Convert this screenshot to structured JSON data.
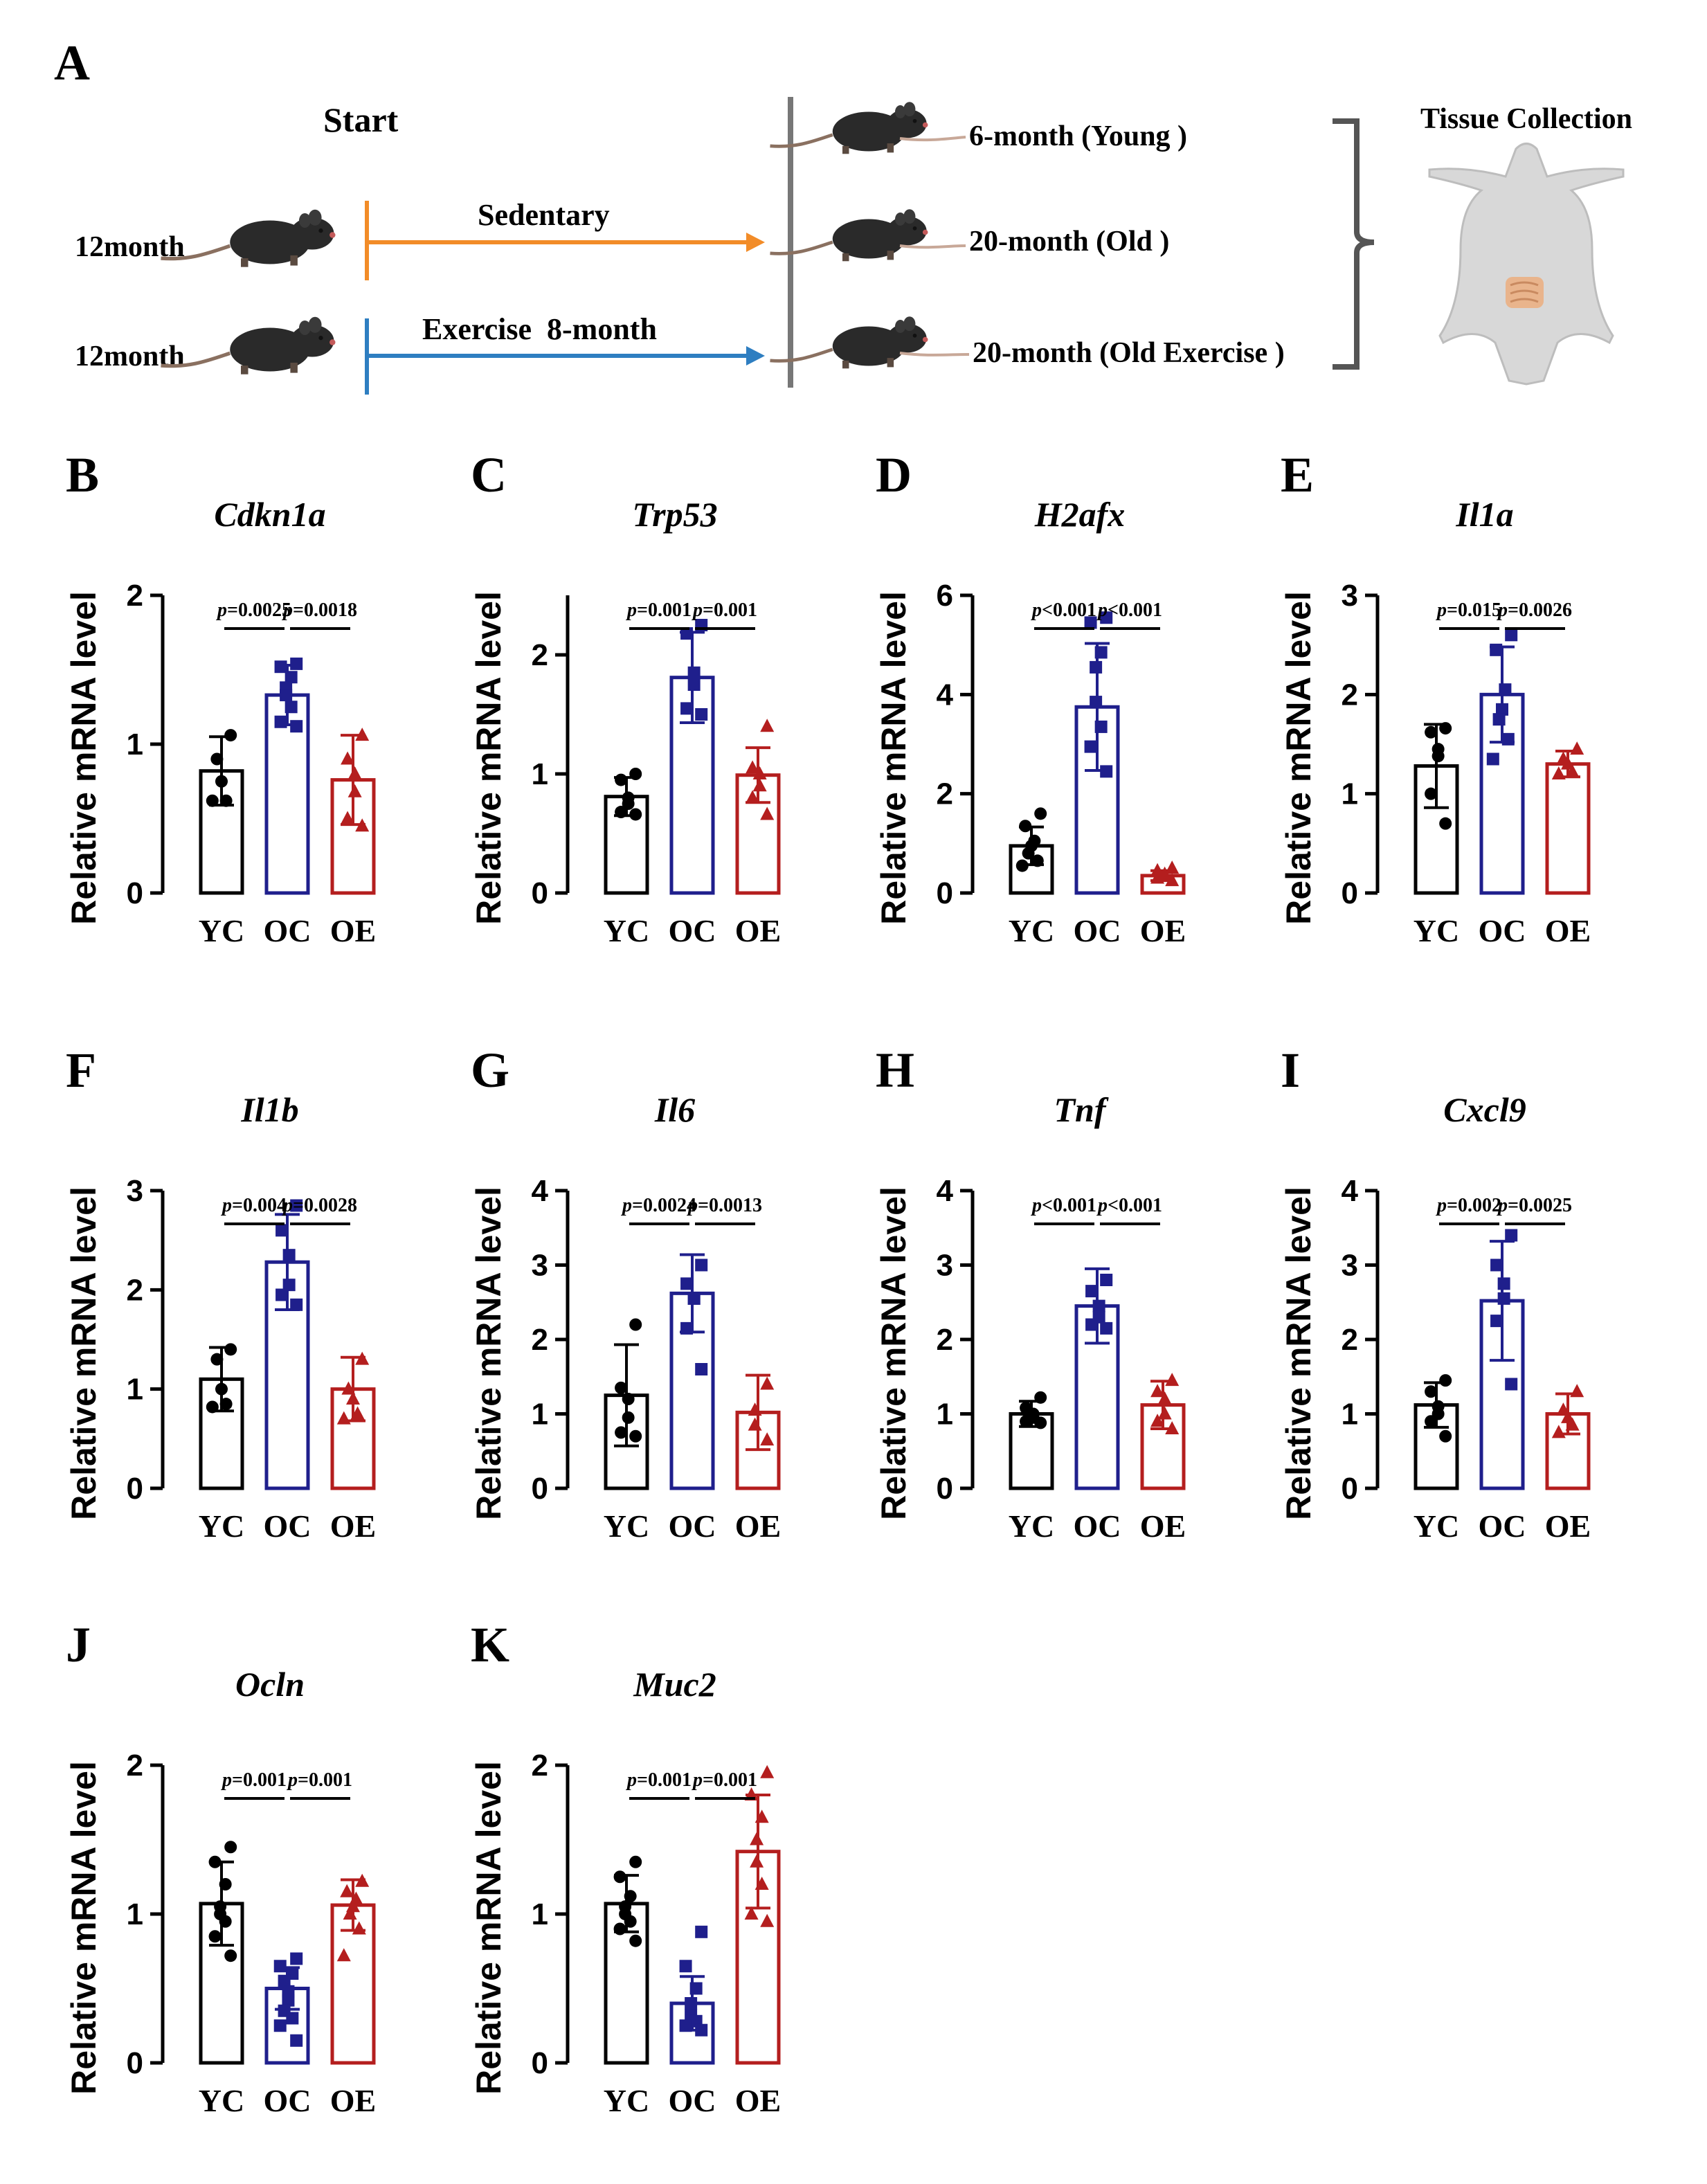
{
  "figure": {
    "schematic": {
      "panel_letter": "A",
      "start_label": "Start",
      "rows": [
        {
          "age": "12month",
          "arm": "Sedentary",
          "arm_color": "#F28C28"
        },
        {
          "age": "12month",
          "arm": "Exercise  8-month",
          "arm_color": "#2E7EC1"
        }
      ],
      "groups": [
        "6-month (Young )",
        "20-month (Old )",
        "20-month (Old Exercise )"
      ],
      "collection_label": "Tissue Collection"
    },
    "p_prefix": "p",
    "categories": [
      "YC",
      "OC",
      "OE"
    ],
    "colors": {
      "YC": "#000000",
      "OC": "#1F1F8C",
      "OE": "#B41E1E"
    }
  },
  "chart_data": [
    {
      "type": "bar",
      "panel": "B",
      "title": "Cdkn1a",
      "ylabel": "Relative mRNA level",
      "categories": [
        "YC",
        "OC",
        "OE"
      ],
      "ylim": [
        0,
        2
      ],
      "yticks": [
        0,
        1,
        2
      ],
      "values": [
        0.82,
        1.33,
        0.76
      ],
      "errors": [
        0.23,
        0.2,
        0.3
      ],
      "points": [
        [
          1.06,
          0.9,
          0.75,
          0.62,
          0.62
        ],
        [
          1.54,
          1.52,
          1.45,
          1.38,
          1.33,
          1.25,
          1.15,
          1.12
        ],
        [
          1.06,
          0.9,
          0.8,
          0.68,
          0.5,
          0.45
        ]
      ],
      "comparisons": [
        {
          "pair": [
            0,
            1
          ],
          "label": "=0.0025"
        },
        {
          "pair": [
            1,
            2
          ],
          "label": "=0.0018"
        }
      ]
    },
    {
      "type": "bar",
      "panel": "C",
      "title": "Trp53",
      "ylabel": "Relative mRNA level",
      "categories": [
        "YC",
        "OC",
        "OE"
      ],
      "ylim": [
        0,
        2.5
      ],
      "yticks": [
        0,
        1,
        2
      ],
      "values": [
        0.81,
        1.81,
        0.99
      ],
      "errors": [
        0.16,
        0.38,
        0.23
      ],
      "points": [
        [
          1.0,
          0.95,
          0.8,
          0.75,
          0.68,
          0.66
        ],
        [
          2.25,
          2.18,
          1.85,
          1.75,
          1.55,
          1.5
        ],
        [
          1.4,
          1.05,
          1.0,
          0.9,
          0.8,
          0.66
        ]
      ],
      "comparisons": [
        {
          "pair": [
            0,
            1
          ],
          "label": "=0.001"
        },
        {
          "pair": [
            1,
            2
          ],
          "label": "=0.001"
        }
      ]
    },
    {
      "type": "bar",
      "panel": "D",
      "title": "H2afx",
      "ylabel": "Relative mRNA level",
      "categories": [
        "YC",
        "OC",
        "OE"
      ],
      "ylim": [
        0,
        6
      ],
      "yticks": [
        0,
        2,
        4,
        6
      ],
      "values": [
        0.95,
        3.75,
        0.35
      ],
      "errors": [
        0.38,
        1.28,
        0.1
      ],
      "points": [
        [
          1.6,
          1.35,
          1.05,
          0.95,
          0.8,
          0.65,
          0.55
        ],
        [
          5.55,
          5.45,
          4.85,
          4.55,
          3.85,
          3.35,
          2.95,
          2.45
        ],
        [
          0.5,
          0.45,
          0.38,
          0.35,
          0.3,
          0.25
        ]
      ],
      "comparisons": [
        {
          "pair": [
            0,
            1
          ],
          "label": "<0.001"
        },
        {
          "pair": [
            1,
            2
          ],
          "label": "<0.001"
        }
      ]
    },
    {
      "type": "bar",
      "panel": "E",
      "title": "Il1a",
      "ylabel": "Relative mRNA level",
      "categories": [
        "YC",
        "OC",
        "OE"
      ],
      "ylim": [
        0,
        3
      ],
      "yticks": [
        0,
        1,
        2,
        3
      ],
      "values": [
        1.28,
        2.0,
        1.3
      ],
      "errors": [
        0.42,
        0.48,
        0.13
      ],
      "points": [
        [
          1.66,
          1.62,
          1.45,
          1.38,
          1.0,
          0.7
        ],
        [
          2.6,
          2.45,
          2.05,
          1.85,
          1.75,
          1.55,
          1.35
        ],
        [
          1.45,
          1.35,
          1.3,
          1.22,
          1.2
        ]
      ],
      "comparisons": [
        {
          "pair": [
            0,
            1
          ],
          "label": "=0.015"
        },
        {
          "pair": [
            1,
            2
          ],
          "label": "=0.0026"
        }
      ]
    },
    {
      "type": "bar",
      "panel": "F",
      "title": "Il1b",
      "ylabel": "Relative mRNA level",
      "categories": [
        "YC",
        "OC",
        "OE"
      ],
      "ylim": [
        0,
        3
      ],
      "yticks": [
        0,
        1,
        2,
        3
      ],
      "values": [
        1.1,
        2.28,
        1.0
      ],
      "errors": [
        0.32,
        0.48,
        0.32
      ],
      "points": [
        [
          1.4,
          1.3,
          1.0,
          0.85,
          0.82
        ],
        [
          2.85,
          2.6,
          2.35,
          2.05,
          1.95,
          1.85
        ],
        [
          1.3,
          1.0,
          0.9,
          0.75,
          0.7
        ]
      ],
      "comparisons": [
        {
          "pair": [
            0,
            1
          ],
          "label": "=0.004"
        },
        {
          "pair": [
            1,
            2
          ],
          "label": "=0.0028"
        }
      ]
    },
    {
      "type": "bar",
      "panel": "G",
      "title": "Il6",
      "ylabel": "Relative mRNA level",
      "categories": [
        "YC",
        "OC",
        "OE"
      ],
      "ylim": [
        0,
        4
      ],
      "yticks": [
        0,
        1,
        2,
        3,
        4
      ],
      "values": [
        1.25,
        2.62,
        1.02
      ],
      "errors": [
        0.68,
        0.52,
        0.5
      ],
      "points": [
        [
          2.2,
          1.35,
          1.2,
          0.95,
          0.75,
          0.7
        ],
        [
          3.0,
          2.75,
          2.55,
          2.55,
          2.15,
          1.6
        ],
        [
          1.4,
          1.05,
          0.85,
          0.65
        ]
      ],
      "comparisons": [
        {
          "pair": [
            0,
            1
          ],
          "label": "=0.0024"
        },
        {
          "pair": [
            1,
            2
          ],
          "label": "=0.0013"
        }
      ]
    },
    {
      "type": "bar",
      "panel": "H",
      "title": "Tnf",
      "ylabel": "Relative mRNA level",
      "categories": [
        "YC",
        "OC",
        "OE"
      ],
      "ylim": [
        0,
        4
      ],
      "yticks": [
        0,
        1,
        2,
        3,
        4
      ],
      "values": [
        1.0,
        2.45,
        1.12
      ],
      "errors": [
        0.17,
        0.5,
        0.32
      ],
      "points": [
        [
          1.22,
          1.08,
          1.0,
          0.95,
          0.9,
          0.88
        ],
        [
          2.8,
          2.65,
          2.45,
          2.3,
          2.2,
          2.15
        ],
        [
          1.45,
          1.3,
          1.2,
          1.0,
          0.9,
          0.8
        ]
      ],
      "comparisons": [
        {
          "pair": [
            0,
            1
          ],
          "label": "<0.001"
        },
        {
          "pair": [
            1,
            2
          ],
          "label": "<0.001"
        }
      ]
    },
    {
      "type": "bar",
      "panel": "I",
      "title": "Cxcl9",
      "ylabel": "Relative mRNA level",
      "categories": [
        "YC",
        "OC",
        "OE"
      ],
      "ylim": [
        0,
        4
      ],
      "yticks": [
        0,
        1,
        2,
        3,
        4
      ],
      "values": [
        1.12,
        2.52,
        1.0
      ],
      "errors": [
        0.3,
        0.8,
        0.27
      ],
      "points": [
        [
          1.45,
          1.3,
          1.1,
          1.0,
          0.9,
          0.7
        ],
        [
          3.4,
          3.0,
          2.75,
          2.55,
          2.25,
          1.4
        ],
        [
          1.3,
          1.05,
          0.95,
          0.85,
          0.75
        ]
      ],
      "comparisons": [
        {
          "pair": [
            0,
            1
          ],
          "label": "=0.002"
        },
        {
          "pair": [
            1,
            2
          ],
          "label": "=0.0025"
        }
      ]
    },
    {
      "type": "bar",
      "panel": "J",
      "title": "Ocln",
      "ylabel": "Relative mRNA level",
      "categories": [
        "YC",
        "OC",
        "OE"
      ],
      "ylim": [
        0,
        2
      ],
      "yticks": [
        0,
        1,
        2
      ],
      "values": [
        1.07,
        0.5,
        1.06
      ],
      "errors": [
        0.28,
        0.14,
        0.17
      ],
      "points": [
        [
          1.45,
          1.35,
          1.2,
          1.05,
          1.0,
          0.95,
          0.85,
          0.72
        ],
        [
          0.7,
          0.65,
          0.6,
          0.55,
          0.48,
          0.42,
          0.35,
          0.3,
          0.25,
          0.15
        ],
        [
          1.22,
          1.15,
          1.1,
          1.05,
          1.0,
          0.9,
          0.72
        ]
      ],
      "comparisons": [
        {
          "pair": [
            0,
            1
          ],
          "label": "=0.001"
        },
        {
          "pair": [
            1,
            2
          ],
          "label": "=0.001"
        }
      ]
    },
    {
      "type": "bar",
      "panel": "K",
      "title": "Muc2",
      "ylabel": "Relative mRNA level",
      "categories": [
        "YC",
        "OC",
        "OE"
      ],
      "ylim": [
        0,
        2
      ],
      "yticks": [
        0,
        1,
        2
      ],
      "values": [
        1.07,
        0.4,
        1.42
      ],
      "errors": [
        0.19,
        0.18,
        0.38
      ],
      "points": [
        [
          1.35,
          1.25,
          1.12,
          1.05,
          1.0,
          0.95,
          0.9,
          0.82
        ],
        [
          0.88,
          0.65,
          0.5,
          0.4,
          0.32,
          0.28,
          0.25,
          0.22
        ],
        [
          1.95,
          1.8,
          1.65,
          1.5,
          1.35,
          1.2,
          1.0,
          0.95
        ]
      ],
      "comparisons": [
        {
          "pair": [
            0,
            1
          ],
          "label": "=0.001"
        },
        {
          "pair": [
            1,
            2
          ],
          "label": "=0.001"
        }
      ]
    }
  ]
}
